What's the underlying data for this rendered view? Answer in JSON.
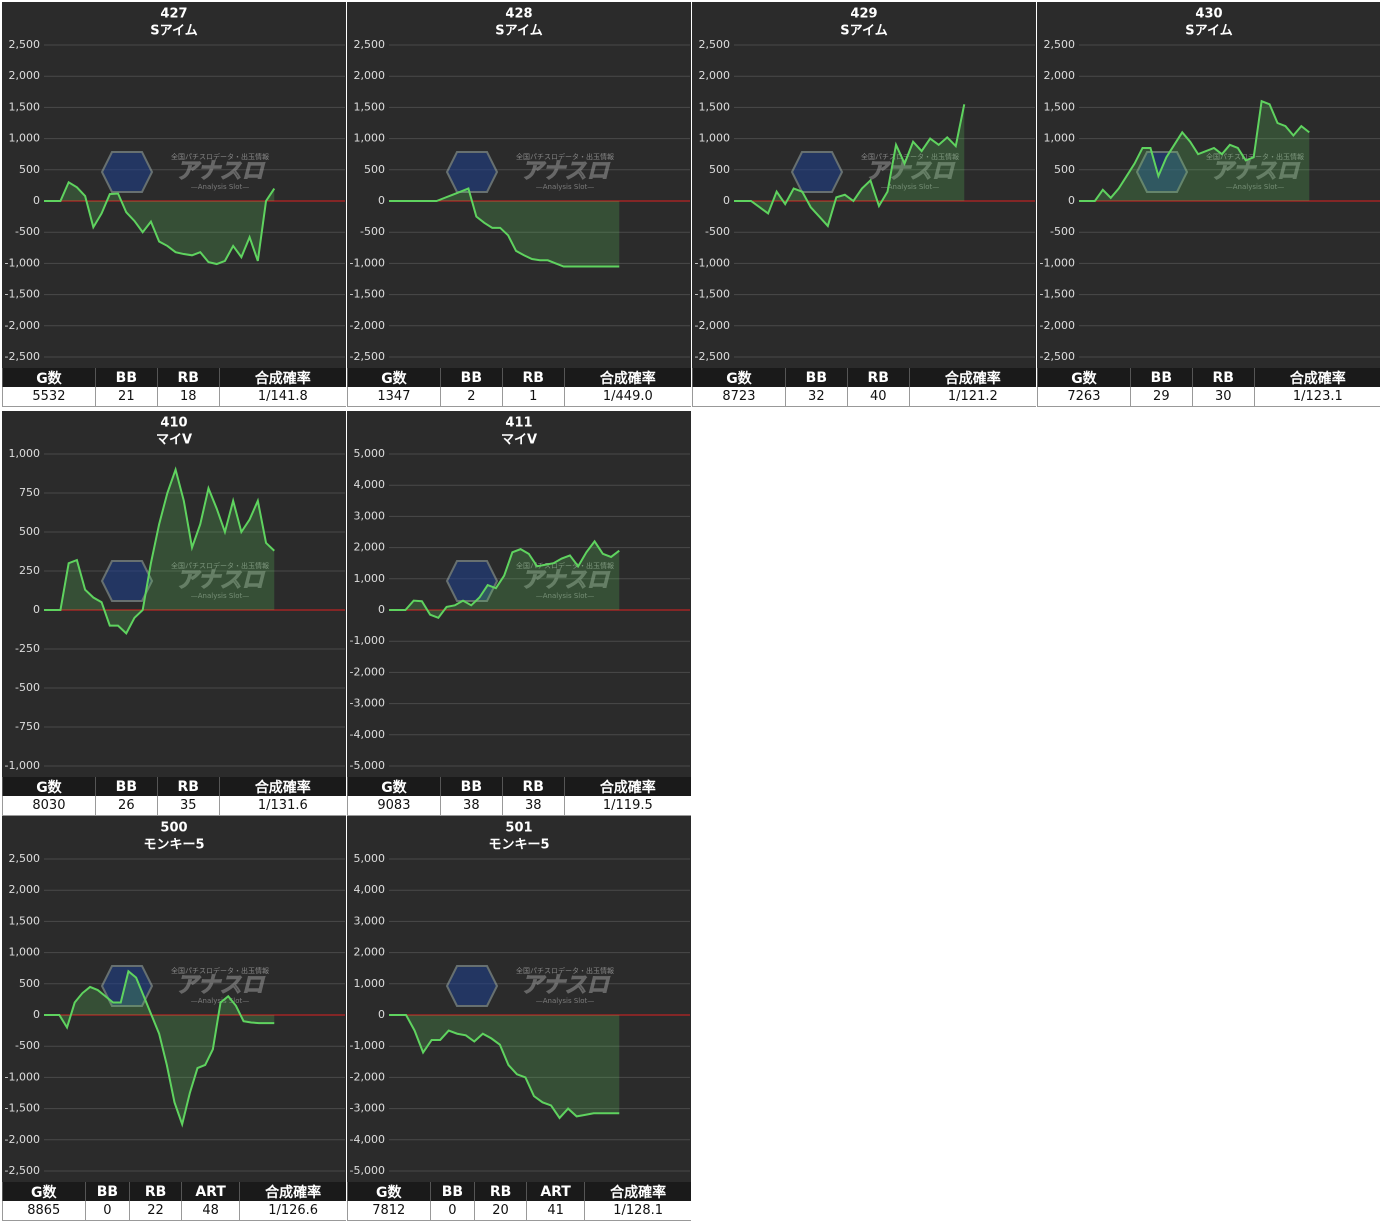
{
  "watermark": {
    "tagline": "全国パチスロデータ・出玉情報",
    "logo": "アナスロ",
    "sub": "—Analysis Slot—"
  },
  "chart_data": [
    {
      "type": "line",
      "title": "427",
      "subtitle": "Sアイム",
      "color": "#5fd35f",
      "grid": true,
      "values": [
        0,
        0,
        0,
        300,
        220,
        80,
        -420,
        -200,
        110,
        120,
        -180,
        -320,
        -500,
        -330,
        -650,
        -720,
        -820,
        -850,
        -870,
        -820,
        -980,
        -1010,
        -960,
        -720,
        -900,
        -580,
        -960,
        0,
        200
      ],
      "ylim": [
        -2500,
        2500
      ],
      "yticks": [
        {
          "value": 2500,
          "label": "2,500"
        },
        {
          "value": 2000,
          "label": "2,000"
        },
        {
          "value": 1500,
          "label": "1,500"
        },
        {
          "value": 1000,
          "label": "1,000"
        },
        500,
        0,
        -500,
        {
          "value": -1000,
          "label": "-1,000"
        },
        {
          "value": -1500,
          "label": "-1,500"
        },
        {
          "value": -2000,
          "label": "-2,000"
        },
        {
          "value": -2500,
          "label": "-2,500"
        }
      ],
      "table": {
        "columns": [
          "G数",
          "BB",
          "RB",
          "合成確率"
        ],
        "rows": [
          [
            5532,
            21,
            18,
            "1/141.8"
          ]
        ]
      }
    },
    {
      "type": "line",
      "title": "428",
      "subtitle": "Sアイム",
      "color": "#5fd35f",
      "grid": true,
      "values": [
        0,
        0,
        0,
        0,
        0,
        0,
        0,
        50,
        100,
        150,
        200,
        -250,
        -350,
        -430,
        -430,
        -550,
        -800,
        -870,
        -930,
        -950,
        -950,
        -1000,
        -1050,
        -1050,
        -1050,
        -1050,
        -1050,
        -1050,
        -1050,
        -1050
      ],
      "ylim": [
        -2500,
        2500
      ],
      "yticks": [
        {
          "value": 2500,
          "label": "2,500"
        },
        {
          "value": 2000,
          "label": "2,000"
        },
        {
          "value": 1500,
          "label": "1,500"
        },
        {
          "value": 1000,
          "label": "1,000"
        },
        500,
        0,
        -500,
        {
          "value": -1000,
          "label": "-1,000"
        },
        {
          "value": -1500,
          "label": "-1,500"
        },
        {
          "value": -2000,
          "label": "-2,000"
        },
        {
          "value": -2500,
          "label": "-2,500"
        }
      ],
      "table": {
        "columns": [
          "G数",
          "BB",
          "RB",
          "合成確率"
        ],
        "rows": [
          [
            1347,
            2,
            1,
            "1/449.0"
          ]
        ]
      }
    },
    {
      "type": "line",
      "title": "429",
      "subtitle": "Sアイム",
      "color": "#5fd35f",
      "grid": true,
      "values": [
        0,
        0,
        0,
        -100,
        -200,
        150,
        -50,
        200,
        150,
        -100,
        -250,
        -400,
        60,
        100,
        0,
        200,
        330,
        -80,
        150,
        900,
        600,
        950,
        800,
        1000,
        900,
        1020,
        880,
        1550
      ],
      "ylim": [
        -2500,
        2500
      ],
      "yticks": [
        {
          "value": 2500,
          "label": "2,500"
        },
        {
          "value": 2000,
          "label": "2,000"
        },
        {
          "value": 1500,
          "label": "1,500"
        },
        {
          "value": 1000,
          "label": "1,000"
        },
        500,
        0,
        -500,
        {
          "value": -1000,
          "label": "-1,000"
        },
        {
          "value": -1500,
          "label": "-1,500"
        },
        {
          "value": -2000,
          "label": "-2,000"
        },
        {
          "value": -2500,
          "label": "-2,500"
        }
      ],
      "table": {
        "columns": [
          "G数",
          "BB",
          "RB",
          "合成確率"
        ],
        "rows": [
          [
            8723,
            32,
            40,
            "1/121.2"
          ]
        ]
      }
    },
    {
      "type": "line",
      "title": "430",
      "subtitle": "Sアイム",
      "color": "#5fd35f",
      "grid": true,
      "values": [
        0,
        0,
        0,
        180,
        50,
        200,
        400,
        600,
        850,
        850,
        400,
        700,
        900,
        1100,
        950,
        750,
        800,
        850,
        750,
        900,
        850,
        650,
        700,
        1600,
        1550,
        1250,
        1200,
        1050,
        1200,
        1100
      ],
      "ylim": [
        -2500,
        2500
      ],
      "yticks": [
        {
          "value": 2500,
          "label": "2,500"
        },
        {
          "value": 2000,
          "label": "2,000"
        },
        {
          "value": 1500,
          "label": "1,500"
        },
        {
          "value": 1000,
          "label": "1,000"
        },
        500,
        0,
        -500,
        {
          "value": -1000,
          "label": "-1,000"
        },
        {
          "value": -1500,
          "label": "-1,500"
        },
        {
          "value": -2000,
          "label": "-2,000"
        },
        {
          "value": -2500,
          "label": "-2,500"
        }
      ],
      "table": {
        "columns": [
          "G数",
          "BB",
          "RB",
          "合成確率"
        ],
        "rows": [
          [
            7263,
            29,
            30,
            "1/123.1"
          ]
        ]
      }
    },
    {
      "type": "line",
      "title": "410",
      "subtitle": "マイV",
      "color": "#5fd35f",
      "grid": true,
      "values": [
        0,
        0,
        0,
        300,
        320,
        130,
        80,
        50,
        -100,
        -100,
        -150,
        -50,
        0,
        300,
        550,
        750,
        900,
        700,
        400,
        550,
        780,
        650,
        500,
        700,
        500,
        580,
        700,
        430,
        380
      ],
      "ylim": [
        -1000,
        1000
      ],
      "yticks": [
        {
          "value": 1000,
          "label": "1,000"
        },
        750,
        500,
        250,
        0,
        -250,
        -500,
        -750,
        {
          "value": -1000,
          "label": "-1,000"
        }
      ],
      "table": {
        "columns": [
          "G数",
          "BB",
          "RB",
          "合成確率"
        ],
        "rows": [
          [
            8030,
            26,
            35,
            "1/131.6"
          ]
        ]
      }
    },
    {
      "type": "line",
      "title": "411",
      "subtitle": "マイV",
      "color": "#5fd35f",
      "grid": true,
      "values": [
        0,
        0,
        0,
        300,
        280,
        -150,
        -250,
        100,
        150,
        300,
        150,
        400,
        800,
        700,
        1100,
        1850,
        1950,
        1800,
        1400,
        1450,
        1500,
        1650,
        1750,
        1400,
        1850,
        2200,
        1800,
        1700,
        1900
      ],
      "ylim": [
        -5000,
        5000
      ],
      "yticks": [
        {
          "value": 5000,
          "label": "5,000"
        },
        {
          "value": 4000,
          "label": "4,000"
        },
        {
          "value": 3000,
          "label": "3,000"
        },
        {
          "value": 2000,
          "label": "2,000"
        },
        {
          "value": 1000,
          "label": "1,000"
        },
        0,
        {
          "value": -1000,
          "label": "-1,000"
        },
        {
          "value": -2000,
          "label": "-2,000"
        },
        {
          "value": -3000,
          "label": "-3,000"
        },
        {
          "value": -4000,
          "label": "-4,000"
        },
        {
          "value": -5000,
          "label": "-5,000"
        }
      ],
      "table": {
        "columns": [
          "G数",
          "BB",
          "RB",
          "合成確率"
        ],
        "rows": [
          [
            9083,
            38,
            38,
            "1/119.5"
          ]
        ]
      }
    },
    {
      "type": "line",
      "title": "500",
      "subtitle": "モンキー5",
      "color": "#5fd35f",
      "grid": true,
      "values": [
        0,
        0,
        0,
        -200,
        200,
        350,
        450,
        400,
        300,
        200,
        200,
        700,
        600,
        300,
        0,
        -300,
        -800,
        -1400,
        -1750,
        -1250,
        -850,
        -800,
        -550,
        200,
        300,
        150,
        -100,
        -120,
        -130,
        -130,
        -130
      ],
      "ylim": [
        -2500,
        2500
      ],
      "yticks": [
        {
          "value": 2500,
          "label": "2,500"
        },
        {
          "value": 2000,
          "label": "2,000"
        },
        {
          "value": 1500,
          "label": "1,500"
        },
        {
          "value": 1000,
          "label": "1,000"
        },
        500,
        0,
        -500,
        {
          "value": -1000,
          "label": "-1,000"
        },
        {
          "value": -1500,
          "label": "-1,500"
        },
        {
          "value": -2000,
          "label": "-2,000"
        },
        {
          "value": -2500,
          "label": "-2,500"
        }
      ],
      "table": {
        "columns": [
          "G数",
          "BB",
          "RB",
          "ART",
          "合成確率"
        ],
        "rows": [
          [
            8865,
            0,
            22,
            48,
            "1/126.6"
          ]
        ]
      }
    },
    {
      "type": "line",
      "title": "501",
      "subtitle": "モンキー5",
      "color": "#5fd35f",
      "grid": true,
      "values": [
        0,
        0,
        0,
        -500,
        -1200,
        -800,
        -800,
        -500,
        -600,
        -650,
        -850,
        -600,
        -750,
        -950,
        -1600,
        -1900,
        -2000,
        -2600,
        -2800,
        -2900,
        -3300,
        -3000,
        -3250,
        -3200,
        -3150,
        -3150,
        -3150,
        -3150
      ],
      "ylim": [
        -5000,
        5000
      ],
      "yticks": [
        {
          "value": 5000,
          "label": "5,000"
        },
        {
          "value": 4000,
          "label": "4,000"
        },
        {
          "value": 3000,
          "label": "3,000"
        },
        {
          "value": 2000,
          "label": "2,000"
        },
        {
          "value": 1000,
          "label": "1,000"
        },
        0,
        {
          "value": -1000,
          "label": "-1,000"
        },
        {
          "value": -2000,
          "label": "-2,000"
        },
        {
          "value": -3000,
          "label": "-3,000"
        },
        {
          "value": -4000,
          "label": "-4,000"
        },
        {
          "value": -5000,
          "label": "-5,000"
        }
      ],
      "table": {
        "columns": [
          "G数",
          "BB",
          "RB",
          "ART",
          "合成確率"
        ],
        "rows": [
          [
            7812,
            0,
            20,
            41,
            "1/128.1"
          ]
        ]
      }
    }
  ]
}
